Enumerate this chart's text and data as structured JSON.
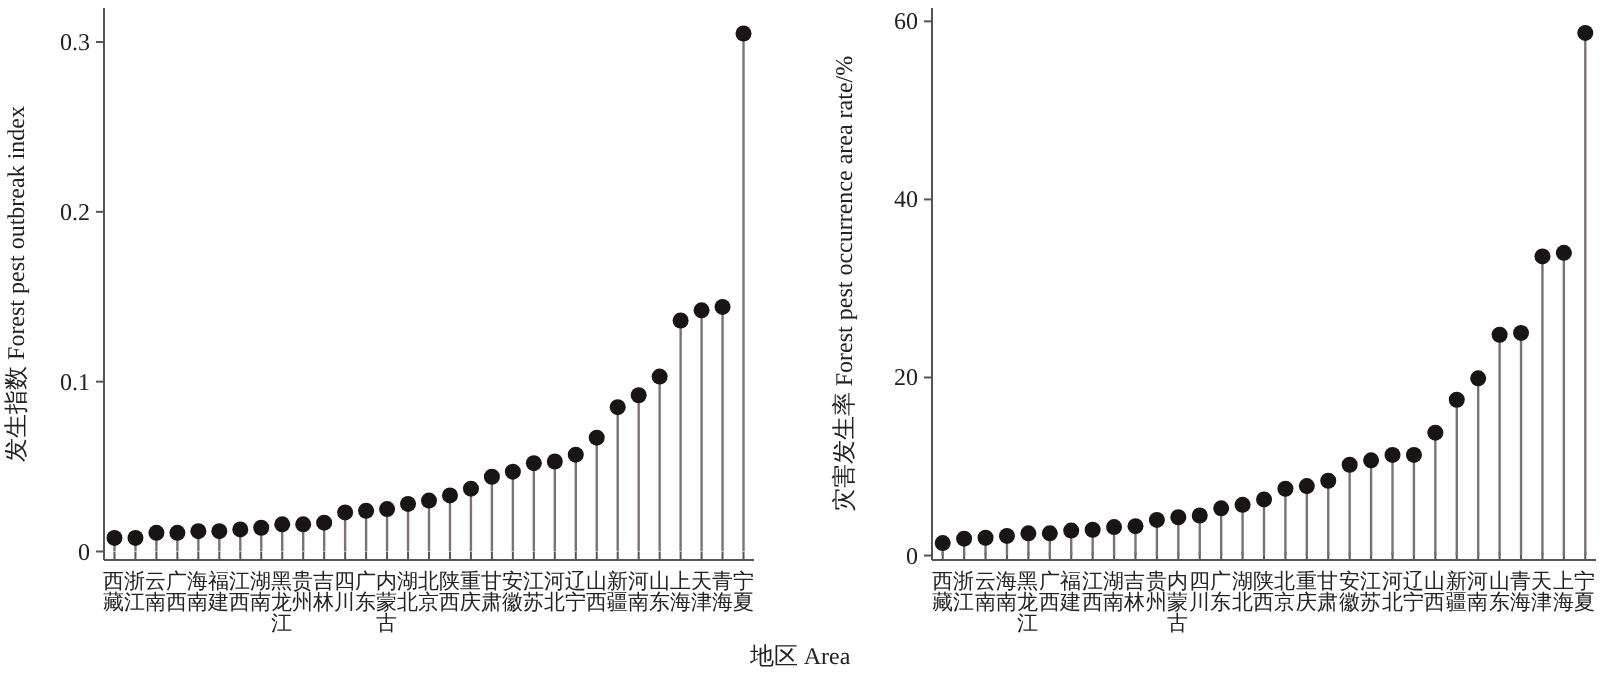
{
  "chart_data": [
    {
      "type": "lollipop",
      "ylabel": "发生指数 Forest pest outbreak index",
      "xlabel": "地区 Area",
      "categories": [
        "西藏",
        "浙江",
        "云南",
        "广西",
        "海南",
        "福建",
        "江西",
        "湖南",
        "黑龙江",
        "贵州",
        "吉林",
        "四川",
        "广东",
        "内蒙古",
        "湖北",
        "北京",
        "陕西",
        "重庆",
        "甘肃",
        "安徽",
        "江苏",
        "河北",
        "辽宁",
        "山西",
        "新疆",
        "河南",
        "山东",
        "上海",
        "天津",
        "青海",
        "宁夏"
      ],
      "series": [
        {
          "color": "#1a1414",
          "values": [
            0.008,
            0.008,
            0.011,
            0.011,
            0.012,
            0.012,
            0.013,
            0.014,
            0.016,
            0.016,
            0.017,
            0.023,
            0.024,
            0.025,
            0.028,
            0.03,
            0.033,
            0.037,
            0.044,
            0.047,
            0.052,
            0.053,
            0.057,
            0.067,
            0.085,
            0.092,
            0.103,
            0.136,
            0.142,
            0.144,
            0.305
          ]
        }
      ],
      "ylim": [
        -0.005,
        0.32
      ],
      "yticks": [
        0,
        0.1,
        0.2,
        0.3
      ],
      "marker": "circle"
    },
    {
      "type": "lollipop",
      "ylabel": "灾害发生率 Forest pest occurrence area rate/%",
      "categories": [
        "西藏",
        "浙江",
        "云南",
        "海南",
        "黑龙江",
        "广西",
        "福建",
        "江西",
        "湖南",
        "吉林",
        "贵州",
        "内蒙古",
        "四川",
        "广东",
        "湖北",
        "陕西",
        "北京",
        "重庆",
        "甘肃",
        "安徽",
        "江苏",
        "河北",
        "辽宁",
        "山西",
        "新疆",
        "河南",
        "山东",
        "青海",
        "天津",
        "上海",
        "宁夏"
      ],
      "series": [
        {
          "color": "#1a1414",
          "values": [
            1.4,
            1.9,
            2.0,
            2.2,
            2.5,
            2.5,
            2.8,
            2.9,
            3.2,
            3.3,
            4.0,
            4.3,
            4.5,
            5.3,
            5.7,
            6.3,
            7.5,
            7.8,
            8.4,
            10.2,
            10.7,
            11.3,
            11.3,
            13.8,
            17.5,
            19.9,
            24.8,
            25.0,
            33.6,
            34.0,
            58.7
          ]
        }
      ],
      "ylim": [
        -0.5,
        61.5
      ],
      "yticks": [
        0,
        20,
        40,
        60
      ],
      "marker": "circle"
    }
  ]
}
